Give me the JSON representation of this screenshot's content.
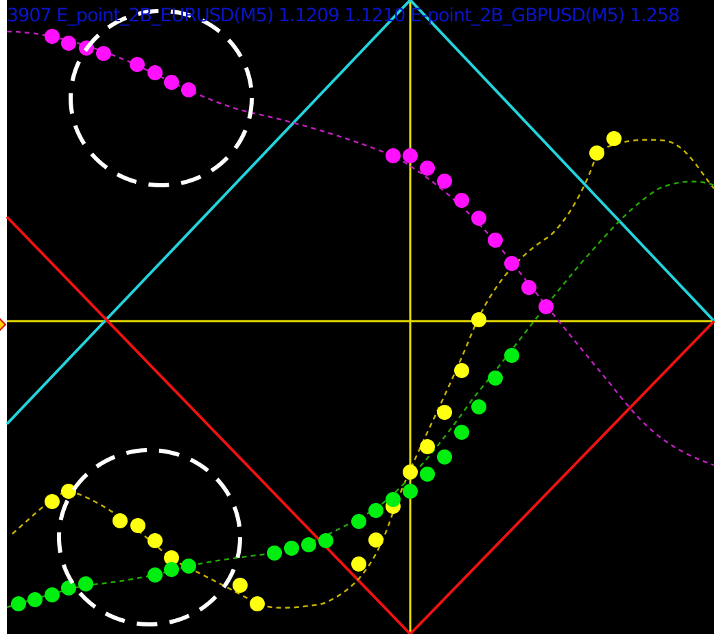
{
  "chart": {
    "title_text": "3907  E_point_2B_EURUSD(M5) 1.1209 1.1210  E-point_2B_GBPUSD(M5) 1.258",
    "background": "#000000",
    "title_color": "#0a14c8"
  },
  "colors": {
    "cyan_line": "#22d3dc",
    "red_line": "#ee1111",
    "yellow_crosshair": "#e8e000",
    "magenta_series": "#ff10ff",
    "magenta_trail": "#c020c0",
    "yellow_series": "#ffff10",
    "yellow_trail": "#c8b400",
    "green_series": "#00ee10",
    "green_trail": "#22aa00",
    "dashed_circle": "#ffffff",
    "marker_fill": "#ffd400",
    "marker_border": "#e00000"
  },
  "icons": {
    "price_marker": "diamond-marker-icon",
    "highlight": "dashed-circle-icon"
  }
}
